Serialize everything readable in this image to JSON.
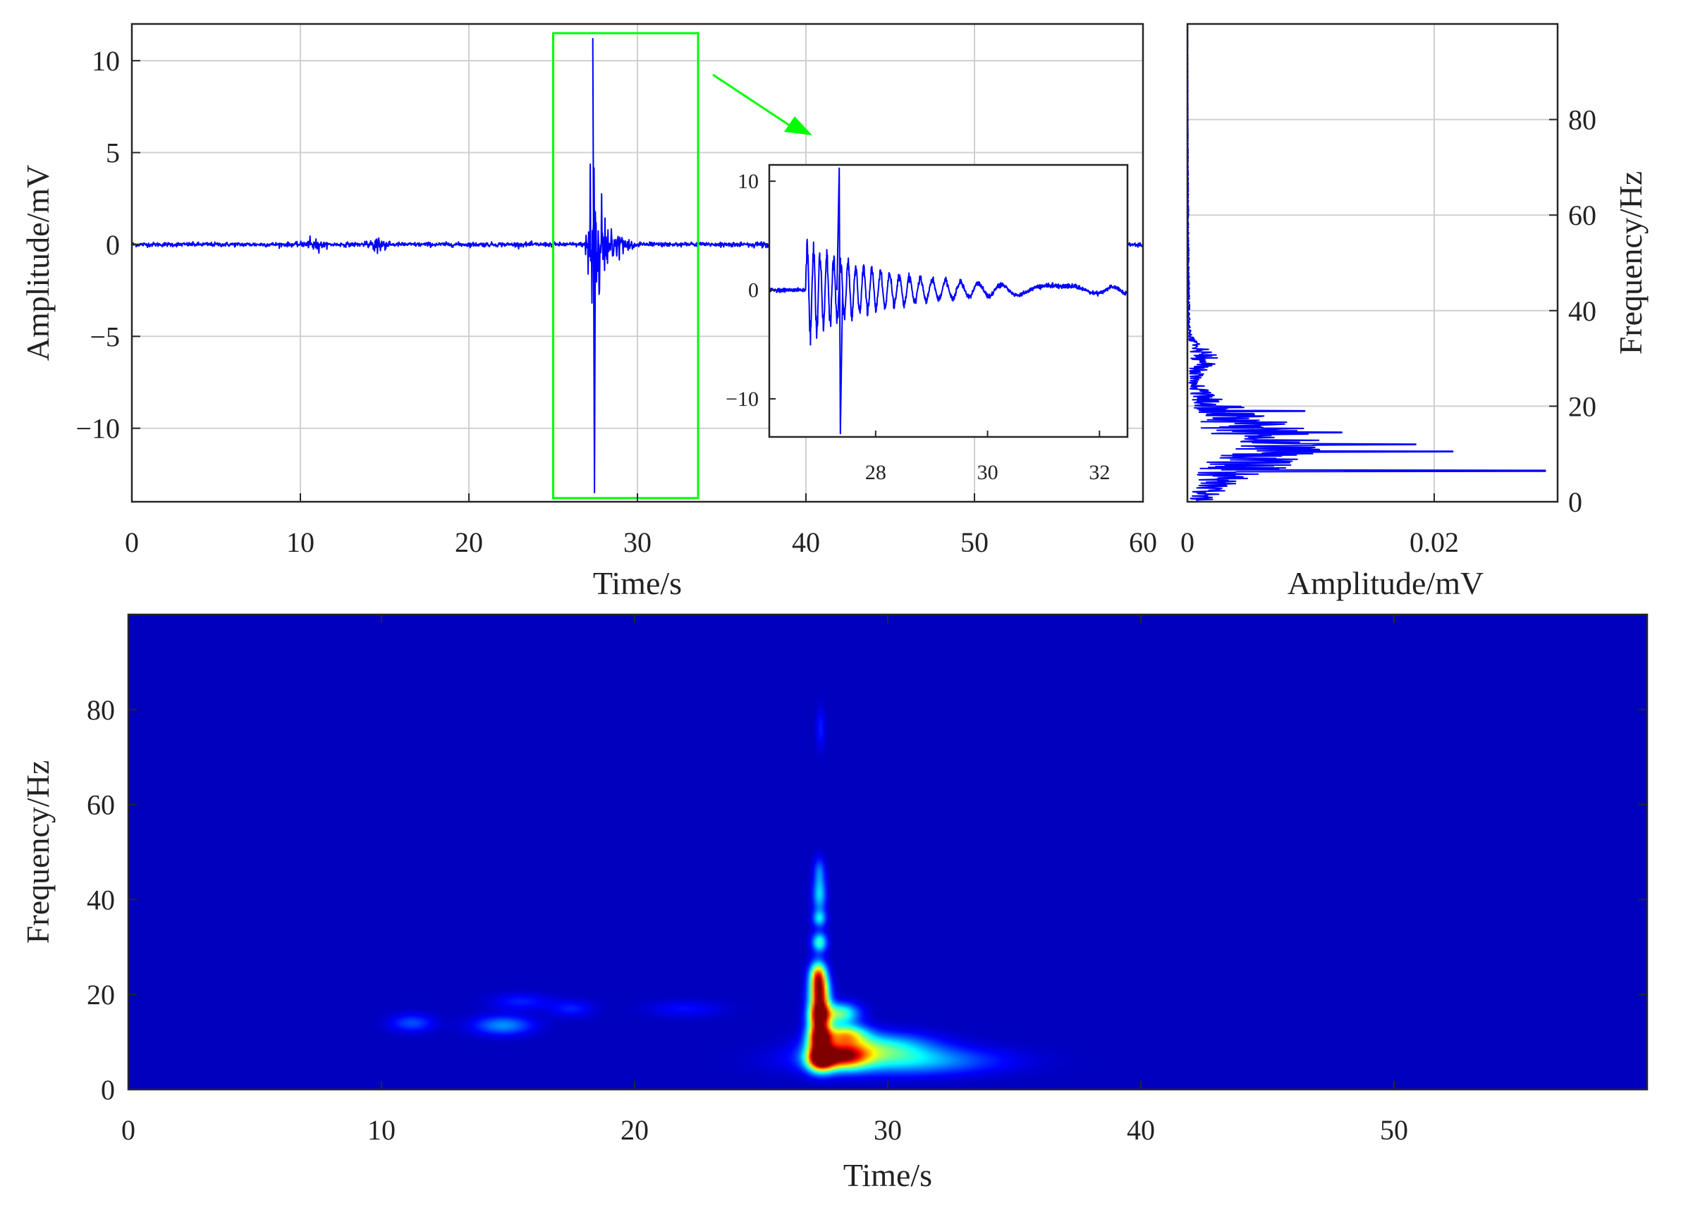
{
  "chart_data": [
    {
      "type": "line",
      "panel": "waveform",
      "xlabel": "Time/s",
      "ylabel": "Amplitude/mV",
      "xlim": [
        0,
        60
      ],
      "ylim": [
        -14,
        12
      ],
      "x_ticks": [
        0,
        10,
        20,
        30,
        40,
        50,
        60
      ],
      "y_ticks": [
        -10,
        -5,
        0,
        5,
        10
      ],
      "x_tick_labels": [
        "0",
        "10",
        "20",
        "30",
        "40",
        "50",
        "60"
      ],
      "y_tick_labels": [
        "−10",
        "−5",
        "0",
        "5",
        "10"
      ],
      "grid": true,
      "series_color": "#0000ff",
      "baseline_noise": 0.06,
      "events": [
        {
          "x": 10.8,
          "amplitude": 0.25
        },
        {
          "x": 14.6,
          "amplitude": 0.35
        },
        {
          "x": 27.3,
          "amplitude": 13.5
        },
        {
          "x": 38.0,
          "amplitude": 0.15
        }
      ],
      "peak": {
        "x": 27.4,
        "max": 11.2,
        "min": -13.5
      },
      "highlight_box": {
        "x": [
          25.0,
          33.6
        ],
        "y": [
          -13.8,
          11.5
        ],
        "color": "#00ff00"
      }
    },
    {
      "type": "line",
      "panel": "waveform-zoom-inset",
      "xlim": [
        26.1,
        32.5
      ],
      "ylim": [
        -13.5,
        11.5
      ],
      "x_ticks": [
        28,
        30,
        32
      ],
      "y_ticks": [
        -10,
        0,
        10
      ],
      "x_tick_labels": [
        "28",
        "30",
        "32"
      ],
      "y_tick_labels": [
        "−10",
        "0",
        "10"
      ],
      "grid": false,
      "series_color": "#0000ff",
      "onset": 26.75,
      "peak": {
        "x": 27.35,
        "max": 11.2,
        "min": -13.2
      },
      "arrow_color": "#00ff00"
    },
    {
      "type": "line",
      "panel": "amplitude-spectrum",
      "xlabel": "Amplitude/mV",
      "ylabel": "Frequency/Hz",
      "xlim": [
        0,
        0.03
      ],
      "ylim": [
        0,
        100
      ],
      "x_ticks": [
        0,
        0.02
      ],
      "y_ticks": [
        0,
        20,
        40,
        60,
        80
      ],
      "x_tick_labels": [
        "0",
        "0.02"
      ],
      "y_tick_labels": [
        "0",
        "20",
        "40",
        "60",
        "80"
      ],
      "y_axis_side": "right",
      "grid": true,
      "series_color": "#0000ff",
      "peak": {
        "frequency": 6.5,
        "amplitude": 0.029
      },
      "notable_peaks": [
        {
          "frequency": 10.5,
          "amplitude": 0.0215
        },
        {
          "frequency": 12.0,
          "amplitude": 0.0185
        },
        {
          "frequency": 14.5,
          "amplitude": 0.0125
        },
        {
          "frequency": 19.0,
          "amplitude": 0.0095
        },
        {
          "frequency": 31.0,
          "amplitude": 0.0012
        }
      ]
    },
    {
      "type": "heatmap",
      "panel": "time-frequency",
      "xlabel": "Time/s",
      "ylabel": "Frequency/Hz",
      "xlim": [
        0,
        60
      ],
      "ylim": [
        0,
        100
      ],
      "x_ticks": [
        0,
        10,
        20,
        30,
        40,
        50
      ],
      "y_ticks": [
        0,
        20,
        40,
        60,
        80
      ],
      "x_tick_labels": [
        "0",
        "10",
        "20",
        "30",
        "40",
        "50"
      ],
      "y_tick_labels": [
        "0",
        "20",
        "40",
        "60",
        "80"
      ],
      "colormap": "jet",
      "background_color": "#00008f",
      "hotspots": [
        {
          "t": 27.35,
          "f": 6.5,
          "dt": 0.35,
          "df": 1.8,
          "intensity": 1.0
        },
        {
          "t": 27.3,
          "f": 11.0,
          "dt": 0.3,
          "df": 2.0,
          "intensity": 1.0
        },
        {
          "t": 27.3,
          "f": 15.5,
          "dt": 0.28,
          "df": 2.0,
          "intensity": 0.95
        },
        {
          "t": 27.3,
          "f": 20.0,
          "dt": 0.26,
          "df": 2.4,
          "intensity": 0.9
        },
        {
          "t": 27.25,
          "f": 24.0,
          "dt": 0.22,
          "df": 2.0,
          "intensity": 0.7
        },
        {
          "t": 28.2,
          "f": 7.0,
          "dt": 0.7,
          "df": 1.8,
          "intensity": 0.75
        },
        {
          "t": 28.3,
          "f": 11.5,
          "dt": 0.6,
          "df": 1.5,
          "intensity": 0.55
        },
        {
          "t": 28.1,
          "f": 16.0,
          "dt": 0.5,
          "df": 1.5,
          "intensity": 0.45
        },
        {
          "t": 29.5,
          "f": 9.0,
          "dt": 1.5,
          "df": 2.0,
          "intensity": 0.35
        },
        {
          "t": 30.5,
          "f": 6.0,
          "dt": 2.5,
          "df": 2.0,
          "intensity": 0.28
        },
        {
          "t": 27.3,
          "f": 31.0,
          "dt": 0.2,
          "df": 1.4,
          "intensity": 0.4
        },
        {
          "t": 27.3,
          "f": 36.0,
          "dt": 0.18,
          "df": 1.2,
          "intensity": 0.3
        },
        {
          "t": 27.3,
          "f": 41.0,
          "dt": 0.18,
          "df": 2.5,
          "intensity": 0.3
        },
        {
          "t": 27.3,
          "f": 46.0,
          "dt": 0.15,
          "df": 2.0,
          "intensity": 0.18
        },
        {
          "t": 27.35,
          "f": 76.0,
          "dt": 0.12,
          "df": 3.0,
          "intensity": 0.1
        },
        {
          "t": 11.2,
          "f": 14.0,
          "dt": 0.6,
          "df": 1.3,
          "intensity": 0.15
        },
        {
          "t": 14.8,
          "f": 13.5,
          "dt": 0.8,
          "df": 1.4,
          "intensity": 0.22
        },
        {
          "t": 15.5,
          "f": 18.5,
          "dt": 0.8,
          "df": 1.2,
          "intensity": 0.1
        },
        {
          "t": 17.5,
          "f": 17.0,
          "dt": 0.6,
          "df": 1.2,
          "intensity": 0.1
        },
        {
          "t": 22.0,
          "f": 17.0,
          "dt": 1.0,
          "df": 1.2,
          "intensity": 0.08
        }
      ]
    }
  ]
}
